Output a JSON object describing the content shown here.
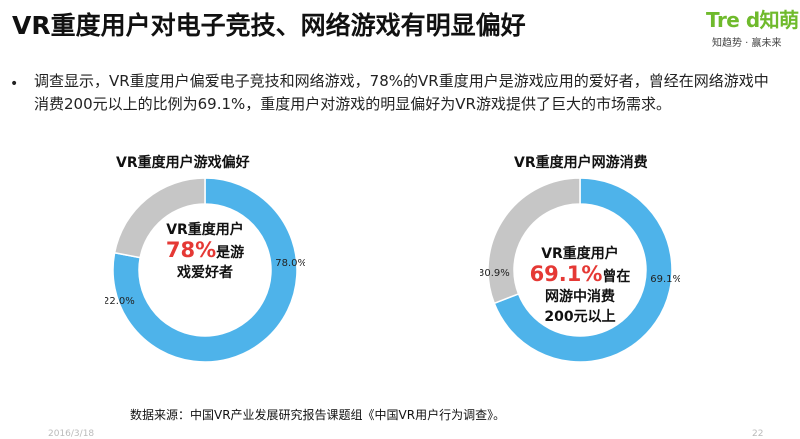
{
  "header": {
    "title": "VR重度用户对电子竞技、网络游戏有明显偏好"
  },
  "logo": {
    "brand": "Tre d知萌",
    "tagline": "知趋势 · 赢未来"
  },
  "summary": {
    "bullet": "•",
    "text": "调查显示，VR重度用户偏爱电子竞技和网络游戏，78%的VR重度用户是游戏应用的爱好者，曾经在网络游戏中消费200元以上的比例为69.1%，重度用户对游戏的明显偏好为VR游戏提供了巨大的市场需求。"
  },
  "charts": {
    "game_pref": {
      "title": "VR重度用户游戏偏好",
      "center_line1": "VR重度用户",
      "center_pct": "78%",
      "center_line2_suffix": "是游",
      "center_line3": "戏爱好者"
    },
    "game_spend": {
      "title": "VR重度用户网游消费",
      "center_line1": "VR重度用户",
      "center_pct": "69.1%",
      "center_line2_suffix": "曾在",
      "center_line3": "网游中消费",
      "center_line4": "200元以上"
    }
  },
  "chart_data": [
    {
      "type": "pie",
      "title": "VR重度用户游戏偏好",
      "slices": [
        {
          "label": "78.0%",
          "value": 78.0,
          "color": "#4eb3ea"
        },
        {
          "label": "22.0%",
          "value": 22.0,
          "color": "#c6c6c6"
        }
      ]
    },
    {
      "type": "pie",
      "title": "VR重度用户网游消费",
      "slices": [
        {
          "label": "69.1%",
          "value": 69.1,
          "color": "#4eb3ea"
        },
        {
          "label": "30.9%",
          "value": 30.9,
          "color": "#c6c6c6"
        }
      ]
    }
  ],
  "footer": {
    "source": "数据来源：中国VR产业发展研究报告课题组《中国VR用户行为调查》。",
    "date": "2016/3/18",
    "page": "22"
  }
}
